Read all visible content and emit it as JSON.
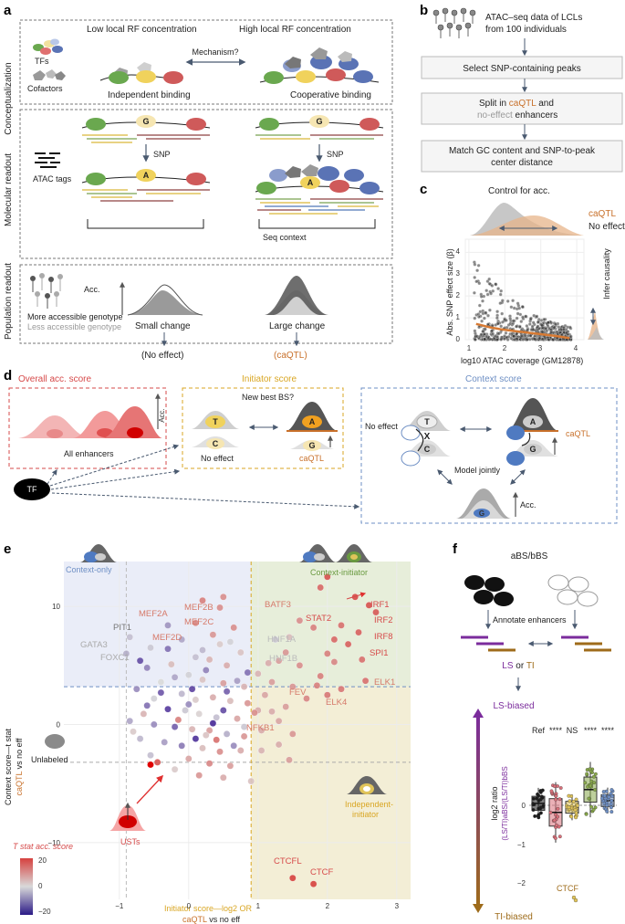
{
  "colors": {
    "red": "#d64a4a",
    "orange": "#c8702a",
    "ctx": "#6e8fc4",
    "ini": "#d9a623",
    "green": "#6a9a40",
    "purple": "#7b2c9c",
    "brown": "#9e6b1a",
    "gray": "#8a8a8a"
  },
  "panel_a": {
    "label": "a",
    "row_labels": [
      "Conceptualization",
      "Molecular readout",
      "Population readout"
    ],
    "tfs": "TFs",
    "cofactors": "Cofactors",
    "low_rf": "Low local RF concentration",
    "high_rf": "High local RF concentration",
    "mechanism": "Mechanism?",
    "independent": "Independent binding",
    "cooperative": "Cooperative binding",
    "atac_tags": "ATAC tags",
    "allele_g": "G",
    "allele_a": "A",
    "snp": "SNP",
    "seq_context": "Seq context",
    "acc": "Acc.",
    "small_change": "Small change",
    "large_change": "Large change",
    "more_acc": "More accessible genotype",
    "less_acc": "Less accessible genotype",
    "no_effect": "(No effect)",
    "caqtl": "(caQTL)"
  },
  "panel_b": {
    "label": "b",
    "title_line1": "ATAC–seq data of LCLs",
    "title_line2": "from 100 individuals",
    "step1": "Select SNP-containing peaks",
    "step2_pre": "Split in ",
    "step2_caqtl": "caQTL",
    "step2_mid": " and",
    "step2_noeff": "no-effect",
    "step2_post": " enhancers",
    "step3_line1": "Match GC content and SNP-to-peak",
    "step3_line2": "center distance"
  },
  "panel_c": {
    "label": "c",
    "control": "Control for acc.",
    "legend_caqtl": "caQTL",
    "legend_noeff": "No effect",
    "ylabel": "Abs. SNP effect size (β)",
    "xlabel": "log10 ATAC coverage (GM12878)",
    "infer": "Infer causality",
    "xticks": [
      "1",
      "2",
      "3",
      "4"
    ],
    "yticks": [
      "0",
      "1",
      "2",
      "3",
      "4"
    ]
  },
  "panel_d": {
    "label": "d",
    "overall": "Overall acc. score",
    "all_enh": "All enhancers",
    "acc": "Acc.",
    "tf": "TF",
    "initiator": "Initiator score",
    "new_best": "New best BS?",
    "no_effect": "No effect",
    "caqtl": "caQTL",
    "context": "Context score",
    "model": "Model jointly",
    "allele_t": "T",
    "allele_a": "A",
    "allele_c": "C",
    "allele_g": "G",
    "cross": "X"
  },
  "panel_e": {
    "label": "e",
    "context_only": "Context-only",
    "context_initiator": "Context-initiator",
    "independent_initiator_l1": "Independent-",
    "independent_initiator_l2": "initiator",
    "unlabeled": "Unlabeled",
    "usts": "USTs",
    "ylabel_line1": "Context score—t stat",
    "ylabel_caqtl": "caQTL",
    "ylabel_vs": " vs no eff",
    "xlabel_line1": "Initiator score—log2 OR",
    "xlabel_caqtl": "caQTL",
    "xlabel_vs": " vs no eff",
    "cbar_title_l1": "T stat acc. score",
    "cbar_ticks": [
      "20",
      "0",
      "−20"
    ],
    "xticks": [
      "−1",
      "0",
      "1",
      "2",
      "3"
    ],
    "yticks": [
      "10",
      "0",
      "−10"
    ],
    "tf_labels": [
      "MEF2A",
      "MEF2B",
      "MEF2C",
      "MEF2D",
      "PIT1",
      "GATA3",
      "FOXC1",
      "BATF3",
      "STAT2",
      "IRF1",
      "IRF2",
      "IRF8",
      "SPI1",
      "HNF1A",
      "HNF1B",
      "ELK1",
      "ELK4",
      "FEV",
      "NFKB1",
      "CTCFL",
      "CTCF"
    ]
  },
  "panel_f": {
    "label": "f",
    "title": "aBS/bBS",
    "annotate": "Annotate enhancers",
    "ls_or_ti_pre": "LS",
    "ls_or_ti_mid": " or ",
    "ls_or_ti_post": "TI",
    "ls_biased": "LS-biased",
    "ti_biased": "TI-biased",
    "sig": [
      "Ref",
      "****",
      "NS",
      "****",
      "****"
    ],
    "ylabel_l1": "log2 ratio",
    "ylabel_l2": "(LS/TI)aBS/(LS/TI)bBS",
    "ctcf": "CTCF",
    "yticks": [
      "0",
      "−1",
      "−2"
    ],
    "box_medians": [
      0.05,
      -0.18,
      -0.05,
      0.4,
      0.12
    ]
  },
  "scatter_e": {
    "points": [
      [
        2.0,
        12.5,
        18
      ],
      [
        1.9,
        11.6,
        15
      ],
      [
        2.4,
        10.8,
        19
      ],
      [
        2.6,
        10.1,
        18
      ],
      [
        2.7,
        9.5,
        17
      ],
      [
        2.2,
        8.4,
        14
      ],
      [
        1.8,
        8.2,
        12
      ],
      [
        1.6,
        8.8,
        10
      ],
      [
        2.1,
        7.2,
        15
      ],
      [
        2.45,
        7.8,
        16
      ],
      [
        2.3,
        6.8,
        16
      ],
      [
        2.0,
        6.0,
        12
      ],
      [
        2.1,
        5.3,
        11
      ],
      [
        2.5,
        5.5,
        14
      ],
      [
        1.4,
        6.1,
        9
      ],
      [
        1.3,
        5.4,
        8
      ],
      [
        1.6,
        5.0,
        10
      ],
      [
        2.55,
        3.7,
        14
      ],
      [
        1.9,
        4.1,
        12
      ],
      [
        1.2,
        3.6,
        8
      ],
      [
        1.5,
        3.2,
        9
      ],
      [
        2.2,
        3.0,
        13
      ],
      [
        1.1,
        2.5,
        7
      ],
      [
        1.7,
        2.2,
        11
      ],
      [
        1.4,
        1.5,
        8
      ],
      [
        1.0,
        1.2,
        6
      ],
      [
        1.3,
        0.3,
        7
      ],
      [
        1.05,
        -0.5,
        6
      ],
      [
        1.5,
        -0.8,
        9
      ],
      [
        1.3,
        -1.7,
        6
      ],
      [
        1.45,
        -3.0,
        8
      ],
      [
        1.05,
        -2.2,
        5
      ],
      [
        2.0,
        2.5,
        13
      ],
      [
        1.0,
        4.3,
        5
      ],
      [
        1.15,
        5.2,
        6
      ],
      [
        1.85,
        3.3,
        12
      ],
      [
        1.2,
        1.1,
        6
      ],
      [
        1.25,
        7.2,
        -2
      ],
      [
        1.45,
        7.4,
        4
      ],
      [
        0.2,
        10.5,
        12
      ],
      [
        0.5,
        10.8,
        10
      ],
      [
        0.45,
        9.9,
        10
      ],
      [
        0.1,
        8.6,
        11
      ],
      [
        0.35,
        7.6,
        9
      ],
      [
        0.65,
        8.2,
        10
      ],
      [
        -0.3,
        8.4,
        -8
      ],
      [
        -0.85,
        7.4,
        -3
      ],
      [
        -0.55,
        6.5,
        -2
      ],
      [
        -0.9,
        6.0,
        -5
      ],
      [
        -0.3,
        6.4,
        -12
      ],
      [
        0.1,
        5.7,
        -3
      ],
      [
        0.3,
        5.5,
        5
      ],
      [
        0.55,
        5.0,
        6
      ],
      [
        0.75,
        6.1,
        3
      ],
      [
        -0.6,
        4.8,
        -10
      ],
      [
        -0.2,
        4.0,
        -6
      ],
      [
        0.0,
        4.2,
        -1
      ],
      [
        0.2,
        3.8,
        3
      ],
      [
        0.5,
        3.5,
        8
      ],
      [
        0.8,
        3.2,
        5
      ],
      [
        -0.75,
        3.0,
        -9
      ],
      [
        -0.4,
        2.7,
        -15
      ],
      [
        -0.1,
        2.6,
        -4
      ],
      [
        0.1,
        2.1,
        2
      ],
      [
        0.35,
        2.3,
        6
      ],
      [
        0.6,
        2.0,
        4
      ],
      [
        0.85,
        1.8,
        9
      ],
      [
        -0.6,
        1.6,
        -12
      ],
      [
        -0.3,
        1.3,
        -18
      ],
      [
        -0.05,
        1.2,
        -2
      ],
      [
        0.15,
        0.9,
        1
      ],
      [
        0.4,
        0.6,
        -3
      ],
      [
        0.7,
        0.5,
        7
      ],
      [
        -0.85,
        0.3,
        -6
      ],
      [
        -0.5,
        0.0,
        -9
      ],
      [
        -0.2,
        -0.2,
        -14
      ],
      [
        0.05,
        -0.4,
        5
      ],
      [
        0.3,
        -0.5,
        8
      ],
      [
        0.55,
        -0.8,
        -5
      ],
      [
        0.8,
        -1.0,
        9
      ],
      [
        -0.7,
        -1.2,
        -4
      ],
      [
        -0.35,
        -1.5,
        -7
      ],
      [
        -0.1,
        -1.8,
        -11
      ],
      [
        0.2,
        -2.0,
        4
      ],
      [
        0.45,
        -2.3,
        10
      ],
      [
        0.75,
        -2.2,
        6
      ],
      [
        -0.55,
        -2.6,
        -3
      ],
      [
        0.0,
        -2.9,
        7
      ],
      [
        0.3,
        -3.3,
        11
      ],
      [
        0.6,
        -3.5,
        8
      ],
      [
        -0.2,
        -3.8,
        2
      ],
      [
        0.15,
        -4.3,
        9
      ],
      [
        0.5,
        -4.5,
        6
      ],
      [
        -0.45,
        -3.2,
        18
      ],
      [
        0.9,
        -4.8,
        3
      ],
      [
        -0.7,
        5.4,
        -16
      ],
      [
        0.6,
        7.0,
        -1
      ],
      [
        -0.5,
        2.2,
        -1
      ],
      [
        0.25,
        4.6,
        -10
      ],
      [
        0.5,
        1.2,
        -16
      ],
      [
        -0.15,
        0.4,
        12
      ],
      [
        0.05,
        3.0,
        -17
      ],
      [
        0.7,
        3.7,
        -7
      ],
      [
        -0.8,
        -0.6,
        2
      ],
      [
        0.1,
        -1.2,
        -19
      ],
      [
        0.4,
        -1.3,
        14
      ],
      [
        -0.25,
        5.1,
        4
      ],
      [
        0.85,
        4.4,
        -12
      ],
      [
        0.95,
        1.0,
        10
      ],
      [
        -0.4,
        3.6,
        0
      ],
      [
        0.2,
        6.3,
        -4
      ],
      [
        0.45,
        6.8,
        2
      ],
      [
        -0.1,
        7.2,
        -6
      ],
      [
        0.65,
        -1.8,
        -9
      ],
      [
        -0.65,
        0.9,
        5
      ],
      [
        0.35,
        0.1,
        -20
      ],
      [
        0.0,
        1.7,
        -9
      ],
      [
        0.25,
        -0.9,
        3
      ],
      [
        0.55,
        2.8,
        -14
      ],
      [
        0.8,
        -0.2,
        -2
      ],
      [
        1.5,
        -13.0,
        20
      ],
      [
        1.8,
        -13.5,
        20
      ]
    ]
  },
  "scatter_c": {
    "xs": [
      1.2,
      1.3,
      1.4,
      1.5,
      1.6,
      1.7,
      1.8,
      1.9,
      2.0,
      2.1,
      2.2,
      2.3,
      2.4,
      2.5,
      2.6,
      2.7,
      2.8,
      2.9,
      3.0,
      3.2,
      3.4,
      3.6,
      3.8
    ],
    "fit": [
      0.72,
      0.68,
      0.64,
      0.6,
      0.56,
      0.53,
      0.5,
      0.47,
      0.45,
      0.43,
      0.41,
      0.39,
      0.37,
      0.35,
      0.33,
      0.31,
      0.29,
      0.27,
      0.25,
      0.21,
      0.17,
      0.12,
      0.07
    ]
  }
}
